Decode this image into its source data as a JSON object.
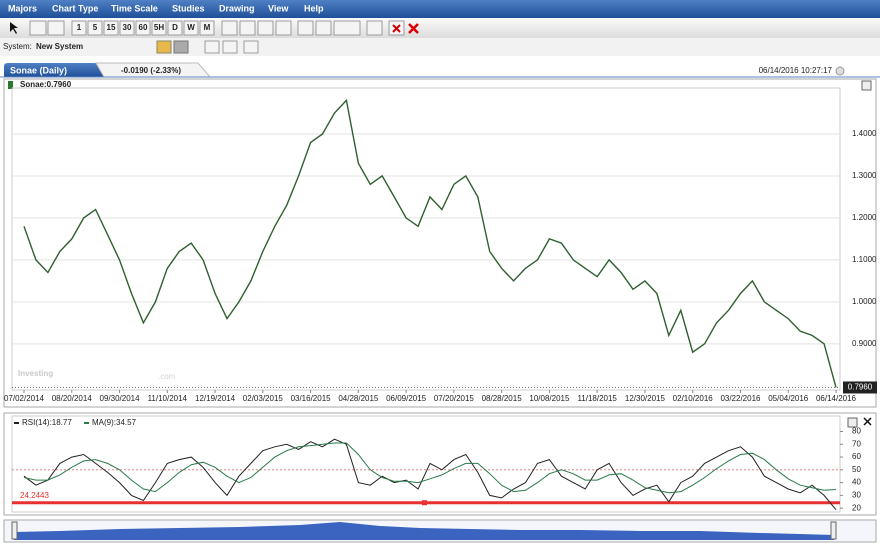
{
  "ui": {
    "menu": [
      "Majors",
      "Chart Type",
      "Time Scale",
      "Studies",
      "Drawing",
      "View",
      "Help"
    ],
    "intervals": [
      "1",
      "5",
      "15",
      "30",
      "60",
      "5H",
      "D",
      "W",
      "M"
    ],
    "system_label": "System:",
    "system_name": "New System",
    "tab": "Sonae (Daily)",
    "change": "-0.0190 (-2.33%)",
    "timestamp": "06/14/2016 10:27:17",
    "watermark": [
      "Investing",
      ".com"
    ]
  },
  "chart_data": [
    {
      "type": "line",
      "legend": "Sonae:0.7960",
      "categories": [
        "07/02/2014",
        null,
        null,
        null,
        "08/20/2014",
        null,
        null,
        null,
        "09/30/2014",
        null,
        null,
        null,
        "11/10/2014",
        null,
        null,
        null,
        "12/19/2014",
        null,
        null,
        null,
        "02/03/2015",
        null,
        null,
        null,
        "03/16/2015",
        null,
        null,
        null,
        "04/28/2015",
        null,
        null,
        null,
        "06/09/2015",
        null,
        null,
        null,
        "07/20/2015",
        null,
        null,
        null,
        "08/28/2015",
        null,
        null,
        null,
        "10/08/2015",
        null,
        null,
        null,
        "11/18/2015",
        null,
        null,
        null,
        "12/30/2015",
        null,
        null,
        null,
        "02/10/2016",
        null,
        null,
        null,
        "03/22/2016",
        null,
        null,
        null,
        "05/04/2016",
        null,
        null,
        null,
        "06/14/2016"
      ],
      "series": [
        {
          "name": "Sonae",
          "color": "#2f5f2f",
          "values": [
            1.18,
            1.1,
            1.07,
            1.12,
            1.15,
            1.2,
            1.22,
            1.16,
            1.1,
            1.02,
            0.95,
            1.0,
            1.08,
            1.12,
            1.14,
            1.1,
            1.02,
            0.96,
            1.0,
            1.05,
            1.12,
            1.18,
            1.23,
            1.3,
            1.38,
            1.4,
            1.45,
            1.48,
            1.33,
            1.28,
            1.3,
            1.25,
            1.2,
            1.18,
            1.25,
            1.22,
            1.28,
            1.3,
            1.25,
            1.12,
            1.08,
            1.05,
            1.08,
            1.1,
            1.15,
            1.14,
            1.1,
            1.08,
            1.06,
            1.1,
            1.07,
            1.03,
            1.05,
            1.02,
            0.92,
            0.98,
            0.88,
            0.9,
            0.95,
            0.98,
            1.02,
            1.05,
            1.0,
            0.98,
            0.96,
            0.93,
            0.92,
            0.9,
            0.796
          ]
        }
      ],
      "last_price": {
        "value": 0.796,
        "label": "0.7960"
      },
      "ylim": [
        0.79,
        1.5
      ],
      "yticks": [
        {
          "value": 0.9,
          "label": "0.9000"
        },
        {
          "value": 1.0,
          "label": "1.0000"
        },
        {
          "value": 1.1,
          "label": "1.1000"
        },
        {
          "value": 1.2,
          "label": "1.2000"
        },
        {
          "value": 1.3,
          "label": "1.3000"
        },
        {
          "value": 1.4,
          "label": "1.4000"
        }
      ],
      "grid": true
    },
    {
      "type": "line",
      "series": [
        {
          "name": "RSI(14):18.77",
          "color": "#222222",
          "values": [
            45,
            38,
            42,
            55,
            60,
            62,
            55,
            48,
            40,
            30,
            26,
            40,
            55,
            58,
            60,
            52,
            40,
            30,
            45,
            55,
            65,
            68,
            70,
            66,
            72,
            68,
            74,
            70,
            40,
            38,
            45,
            40,
            42,
            35,
            55,
            50,
            58,
            62,
            48,
            30,
            28,
            35,
            40,
            55,
            58,
            45,
            40,
            35,
            50,
            55,
            40,
            30,
            35,
            38,
            25,
            40,
            45,
            55,
            60,
            65,
            68,
            60,
            45,
            40,
            35,
            32,
            38,
            30,
            18.77
          ]
        },
        {
          "name": "MA(9):34.57",
          "color": "#2a7a4a",
          "values": [
            44,
            42,
            42,
            46,
            52,
            57,
            58,
            55,
            50,
            42,
            35,
            33,
            40,
            48,
            54,
            56,
            52,
            45,
            40,
            44,
            52,
            60,
            65,
            68,
            69,
            70,
            71,
            71,
            62,
            50,
            44,
            41,
            41,
            40,
            43,
            46,
            51,
            55,
            55,
            47,
            38,
            33,
            34,
            40,
            47,
            50,
            47,
            42,
            42,
            46,
            47,
            42,
            36,
            34,
            32,
            33,
            38,
            44,
            51,
            57,
            62,
            63,
            58,
            50,
            43,
            38,
            36,
            34,
            34.57
          ]
        }
      ],
      "reference_lines": [
        {
          "value": 50
        },
        {
          "value": 24.2443,
          "label": "24.2443"
        }
      ],
      "ylim": [
        17,
        89
      ],
      "yticks": [
        20,
        30,
        40,
        50,
        60,
        70,
        80
      ]
    }
  ]
}
